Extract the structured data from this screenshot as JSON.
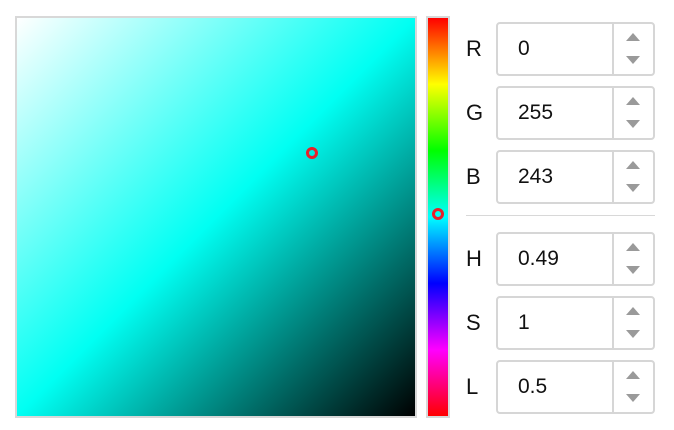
{
  "color": {
    "hex": "#00fff3",
    "hue_fraction": 0.49,
    "saturation": 1,
    "lightness": 0.5
  },
  "marker_colors": {
    "sl_marker": "#e8202a",
    "hue_marker": "#e8202a"
  },
  "fields": [
    {
      "key": "r",
      "label": "R",
      "value": "0"
    },
    {
      "key": "g",
      "label": "G",
      "value": "255"
    },
    {
      "key": "b",
      "label": "B",
      "value": "243"
    },
    {
      "key": "h",
      "label": "H",
      "value": "0.49"
    },
    {
      "key": "s",
      "label": "S",
      "value": "1"
    },
    {
      "key": "l",
      "label": "L",
      "value": "0.5"
    }
  ],
  "icons": {
    "increment": "triangle-up-icon",
    "decrement": "triangle-down-icon"
  }
}
